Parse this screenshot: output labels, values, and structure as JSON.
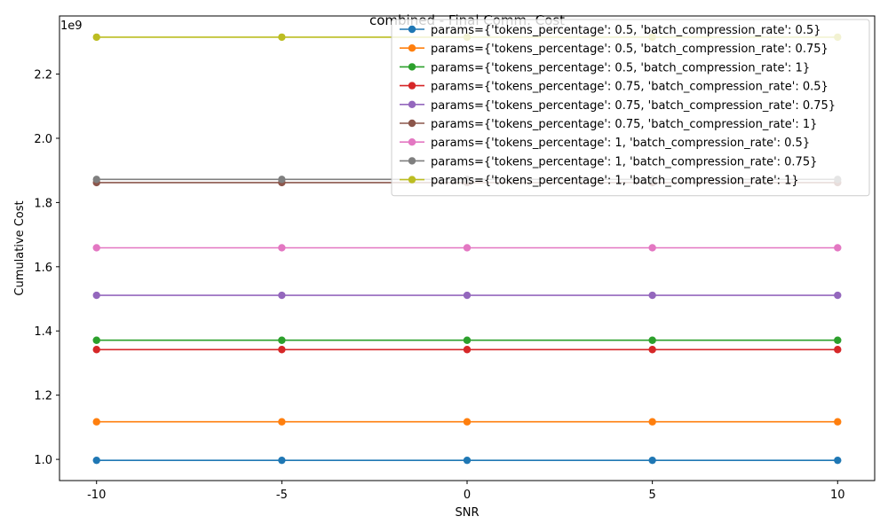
{
  "chart_data": {
    "type": "line",
    "title": "combined - Final Comm. Cost",
    "xlabel": "SNR",
    "ylabel": "Cumulative Cost",
    "y_offset_label": "1e9",
    "x": [
      -10,
      -5,
      0,
      5,
      10
    ],
    "x_tick_labels": [
      "-10",
      "-5",
      "0",
      "5",
      "10"
    ],
    "y_ticks": [
      1.0,
      1.2,
      1.4,
      1.6,
      1.8,
      2.0,
      2.2
    ],
    "y_tick_labels": [
      "1.0",
      "1.2",
      "1.4",
      "1.6",
      "1.8",
      "2.0",
      "2.2"
    ],
    "xlim": [
      -11,
      11
    ],
    "ylim": [
      0.934,
      2.381
    ],
    "y_scale": 1000000000,
    "grid": false,
    "legend_position": "top-right",
    "series": [
      {
        "name": "params={'tokens_percentage': 0.5, 'batch_compression_rate': 0.5}",
        "color": "#1f77b4",
        "values": [
          0.997,
          0.997,
          0.997,
          0.997,
          0.997
        ]
      },
      {
        "name": "params={'tokens_percentage': 0.5, 'batch_compression_rate': 0.75}",
        "color": "#ff7f0e",
        "values": [
          1.117,
          1.117,
          1.117,
          1.117,
          1.117
        ]
      },
      {
        "name": "params={'tokens_percentage': 0.5, 'batch_compression_rate': 1}",
        "color": "#2ca02c",
        "values": [
          1.371,
          1.371,
          1.371,
          1.371,
          1.371
        ]
      },
      {
        "name": "params={'tokens_percentage': 0.75, 'batch_compression_rate': 0.5}",
        "color": "#d62728",
        "values": [
          1.342,
          1.342,
          1.342,
          1.342,
          1.342
        ]
      },
      {
        "name": "params={'tokens_percentage': 0.75, 'batch_compression_rate': 0.75}",
        "color": "#9467bd",
        "values": [
          1.511,
          1.511,
          1.511,
          1.511,
          1.511
        ]
      },
      {
        "name": "params={'tokens_percentage': 0.75, 'batch_compression_rate': 1}",
        "color": "#8c564b",
        "values": [
          1.862,
          1.862,
          1.862,
          1.862,
          1.862
        ]
      },
      {
        "name": "params={'tokens_percentage': 1, 'batch_compression_rate': 0.5}",
        "color": "#e377c2",
        "values": [
          1.659,
          1.659,
          1.659,
          1.659,
          1.659
        ]
      },
      {
        "name": "params={'tokens_percentage': 1, 'batch_compression_rate': 0.75}",
        "color": "#7f7f7f",
        "values": [
          1.872,
          1.872,
          1.872,
          1.872,
          1.872
        ]
      },
      {
        "name": "params={'tokens_percentage': 1, 'batch_compression_rate': 1}",
        "color": "#bcbd22",
        "values": [
          2.315,
          2.315,
          2.315,
          2.315,
          2.315
        ]
      }
    ]
  }
}
